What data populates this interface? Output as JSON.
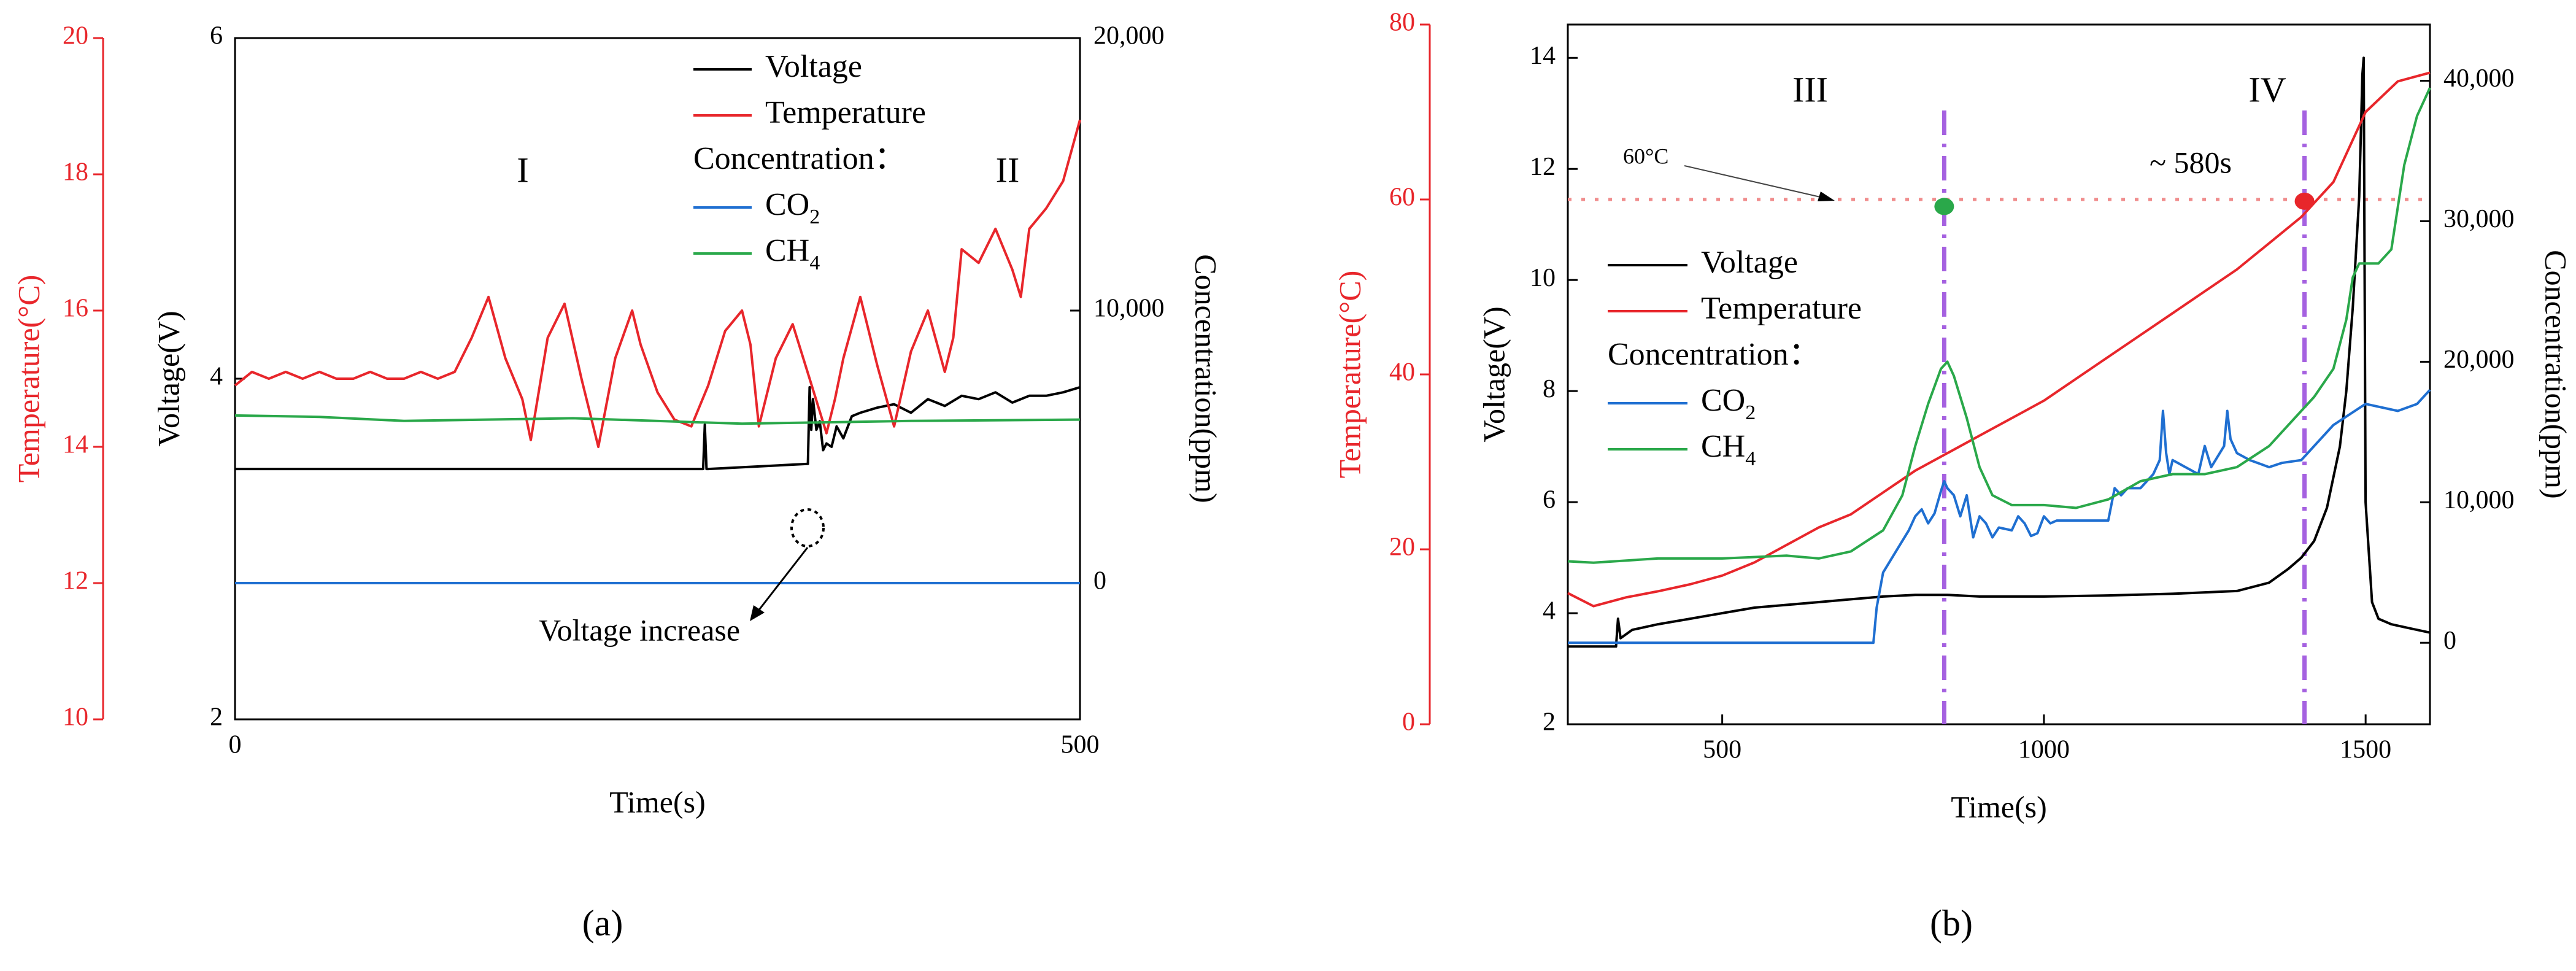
{
  "chart_data": [
    {
      "type": "line",
      "panel_label": "(a)",
      "xlabel": "Time(s)",
      "xlim": [
        0,
        500
      ],
      "x_ticks": [
        0,
        500
      ],
      "x_tick_labels": [
        "0",
        "500"
      ],
      "y_left_inner": {
        "label": "Voltage(V)",
        "lim": [
          2,
          6
        ],
        "ticks": [
          2,
          4,
          6
        ],
        "tick_labels": [
          "2",
          "4",
          "6"
        ]
      },
      "y_left_outer": {
        "label": "Temperature(°C)",
        "lim": [
          10,
          20
        ],
        "ticks": [
          10,
          12,
          14,
          16,
          18,
          20
        ],
        "tick_labels": [
          "10",
          "12",
          "14",
          "16",
          "18",
          "20"
        ],
        "color": "#e8262b"
      },
      "y_right": {
        "label": "Concentration(ppm)",
        "lim": [
          -5000,
          20000
        ],
        "ticks": [
          0,
          10000,
          20000
        ],
        "tick_labels": [
          "0",
          "10,000",
          "20,000"
        ]
      },
      "legend": [
        {
          "label": "Voltage",
          "color": "#000000"
        },
        {
          "label": "Temperature",
          "color": "#e8262b"
        },
        {
          "label": "Concentration：",
          "color": ""
        },
        {
          "label": "CO",
          "sub": "2",
          "color": "#1f6fd1"
        },
        {
          "label": "CH",
          "sub": "4",
          "color": "#2aa84a"
        }
      ],
      "annotations": {
        "region_1": "I",
        "region_2": "II",
        "voltage_note": "Voltage increase"
      },
      "series": [
        {
          "name": "Voltage",
          "axis": "voltage",
          "color": "#000000",
          "x": [
            0,
            277,
            278,
            279,
            280,
            339,
            340,
            341,
            342,
            344,
            346,
            348,
            350,
            353,
            356,
            360,
            365,
            370,
            380,
            390,
            400,
            410,
            420,
            430,
            440,
            450,
            460,
            470,
            480,
            490,
            500
          ],
          "y": [
            3.47,
            3.47,
            3.73,
            3.47,
            3.47,
            3.5,
            3.95,
            3.7,
            3.88,
            3.7,
            3.75,
            3.58,
            3.62,
            3.6,
            3.72,
            3.65,
            3.78,
            3.8,
            3.83,
            3.85,
            3.8,
            3.88,
            3.84,
            3.9,
            3.88,
            3.92,
            3.86,
            3.9,
            3.9,
            3.92,
            3.95
          ]
        },
        {
          "name": "Temperature",
          "axis": "temperature",
          "color": "#e8262b",
          "x": [
            0,
            10,
            20,
            30,
            40,
            50,
            60,
            70,
            80,
            90,
            100,
            110,
            120,
            130,
            140,
            150,
            160,
            170,
            175,
            185,
            195,
            205,
            215,
            225,
            235,
            240,
            250,
            260,
            270,
            280,
            290,
            300,
            305,
            310,
            320,
            330,
            340,
            350,
            355,
            360,
            370,
            380,
            390,
            400,
            410,
            420,
            425,
            430,
            440,
            450,
            460,
            465,
            470,
            480,
            490,
            500
          ],
          "y": [
            14.9,
            15.1,
            15.0,
            15.1,
            15.0,
            15.1,
            15.0,
            15.0,
            15.1,
            15.0,
            15.0,
            15.1,
            15.0,
            15.1,
            15.6,
            16.2,
            15.3,
            14.7,
            14.1,
            15.6,
            16.1,
            15.0,
            14.0,
            15.3,
            16.0,
            15.5,
            14.8,
            14.4,
            14.3,
            14.9,
            15.7,
            16.0,
            15.5,
            14.3,
            15.3,
            15.8,
            15.0,
            14.2,
            14.7,
            15.3,
            16.2,
            15.2,
            14.3,
            15.4,
            16.0,
            15.1,
            15.6,
            16.9,
            16.7,
            17.2,
            16.6,
            16.2,
            17.2,
            17.5,
            17.9,
            18.8
          ]
        },
        {
          "name": "CO2",
          "axis": "concentration",
          "color": "#1f6fd1",
          "x": [
            0,
            500
          ],
          "y": [
            0,
            0
          ]
        },
        {
          "name": "CH4",
          "axis": "concentration",
          "color": "#2aa84a",
          "x": [
            0,
            50,
            100,
            200,
            300,
            400,
            500
          ],
          "y": [
            6150,
            6100,
            5950,
            6050,
            5850,
            5950,
            6000
          ]
        }
      ]
    },
    {
      "type": "line",
      "panel_label": "(b)",
      "xlabel": "Time(s)",
      "xlim": [
        260,
        1600
      ],
      "x_ticks": [
        500,
        1000,
        1500
      ],
      "x_tick_labels": [
        "500",
        "1000",
        "1500"
      ],
      "y_left_inner": {
        "label": "Voltage(V)",
        "lim": [
          2,
          14.6
        ],
        "ticks": [
          2,
          4,
          6,
          8,
          10,
          12,
          14
        ],
        "tick_labels": [
          "2",
          "4",
          "6",
          "8",
          "10",
          "12",
          "14"
        ]
      },
      "y_left_outer": {
        "label": "Temperature(°C)",
        "lim": [
          0,
          80
        ],
        "ticks": [
          0,
          20,
          40,
          60,
          80
        ],
        "tick_labels": [
          "0",
          "20",
          "40",
          "60",
          "80"
        ],
        "color": "#e8262b"
      },
      "y_right": {
        "label": "Concentration(ppm)",
        "lim": [
          -5800,
          44000
        ],
        "ticks": [
          0,
          10000,
          20000,
          30000,
          40000
        ],
        "tick_labels": [
          "0",
          "10,000",
          "20,000",
          "30,000",
          "40,000"
        ]
      },
      "legend": [
        {
          "label": "Voltage",
          "color": "#000000"
        },
        {
          "label": "Temperature",
          "color": "#e8262b"
        },
        {
          "label": "Concentration：",
          "color": ""
        },
        {
          "label": "CO",
          "sub": "2",
          "color": "#1f6fd1"
        },
        {
          "label": "CH",
          "sub": "4",
          "color": "#2aa84a"
        }
      ],
      "annotations": {
        "region_3": "III",
        "region_4": "IV",
        "temp_threshold": "60°C",
        "interval": "~ 580s",
        "threshold_temp_value": 60,
        "vline_1_x": 845,
        "vline_2_x": 1405
      },
      "markers": [
        {
          "x": 845,
          "temp": 59.2,
          "color": "#2aa84a"
        },
        {
          "x": 1405,
          "temp": 59.8,
          "color": "#e8262b"
        }
      ],
      "series": [
        {
          "name": "Voltage",
          "axis": "voltage",
          "color": "#000000",
          "x": [
            260,
            335,
            338,
            342,
            360,
            400,
            450,
            500,
            550,
            600,
            650,
            700,
            750,
            800,
            850,
            900,
            1000,
            1100,
            1200,
            1300,
            1350,
            1380,
            1400,
            1420,
            1440,
            1460,
            1470,
            1480,
            1490,
            1495,
            1497,
            1500,
            1510,
            1520,
            1540,
            1560,
            1580,
            1600
          ],
          "y": [
            3.4,
            3.4,
            3.9,
            3.55,
            3.7,
            3.8,
            3.9,
            4.0,
            4.1,
            4.15,
            4.2,
            4.25,
            4.3,
            4.33,
            4.33,
            4.3,
            4.3,
            4.32,
            4.35,
            4.4,
            4.55,
            4.8,
            5.0,
            5.3,
            5.9,
            7.0,
            8.0,
            9.5,
            11.5,
            13.7,
            14.0,
            6.0,
            4.2,
            3.9,
            3.8,
            3.75,
            3.7,
            3.65
          ]
        },
        {
          "name": "Temperature",
          "axis": "temperature",
          "color": "#e8262b",
          "x": [
            260,
            300,
            350,
            400,
            450,
            500,
            550,
            600,
            650,
            700,
            750,
            800,
            850,
            900,
            950,
            1000,
            1050,
            1100,
            1150,
            1200,
            1250,
            1300,
            1350,
            1400,
            1450,
            1500,
            1550,
            1600
          ],
          "y": [
            15.0,
            13.5,
            14.5,
            15.2,
            16.0,
            17.0,
            18.5,
            20.5,
            22.5,
            24.0,
            26.5,
            29.0,
            31.0,
            33.0,
            35.0,
            37.0,
            39.5,
            42.0,
            44.5,
            47.0,
            49.5,
            52.0,
            55.0,
            58.0,
            62.0,
            70.0,
            73.5,
            74.5
          ]
        },
        {
          "name": "CO2",
          "axis": "concentration",
          "color": "#1f6fd1",
          "x": [
            260,
            735,
            740,
            750,
            770,
            790,
            800,
            810,
            820,
            830,
            840,
            845,
            850,
            860,
            870,
            880,
            890,
            900,
            910,
            920,
            930,
            950,
            960,
            970,
            980,
            990,
            1000,
            1010,
            1020,
            1050,
            1100,
            1110,
            1120,
            1130,
            1150,
            1170,
            1180,
            1185,
            1190,
            1195,
            1200,
            1220,
            1240,
            1250,
            1260,
            1280,
            1285,
            1290,
            1300,
            1320,
            1350,
            1370,
            1400,
            1450,
            1500,
            1550,
            1580,
            1600
          ],
          "y": [
            0,
            0,
            2500,
            5000,
            6500,
            8000,
            9000,
            9500,
            8500,
            9200,
            10800,
            11500,
            11000,
            10500,
            9000,
            10500,
            7500,
            9000,
            8500,
            7500,
            8200,
            8000,
            9000,
            8500,
            7600,
            7800,
            9000,
            8500,
            8700,
            8700,
            8700,
            11000,
            10500,
            11000,
            11000,
            12000,
            13000,
            16500,
            13500,
            12000,
            13000,
            12500,
            12000,
            14000,
            12500,
            14000,
            16500,
            14500,
            13500,
            13000,
            12500,
            12800,
            13000,
            15500,
            17000,
            16500,
            17000,
            18000
          ]
        },
        {
          "name": "CH4",
          "axis": "concentration",
          "color": "#2aa84a",
          "x": [
            260,
            300,
            400,
            500,
            600,
            650,
            700,
            750,
            780,
            800,
            820,
            840,
            850,
            860,
            880,
            900,
            920,
            950,
            1000,
            1050,
            1100,
            1150,
            1200,
            1250,
            1300,
            1350,
            1380,
            1400,
            1420,
            1450,
            1470,
            1480,
            1490,
            1500,
            1520,
            1540,
            1560,
            1580,
            1600
          ],
          "y": [
            5800,
            5700,
            6000,
            6000,
            6200,
            6000,
            6500,
            8000,
            10500,
            14000,
            17000,
            19500,
            20000,
            19000,
            16000,
            12500,
            10500,
            9800,
            9800,
            9600,
            10200,
            11500,
            12000,
            12000,
            12500,
            14000,
            15500,
            16500,
            17500,
            19500,
            23000,
            26000,
            27000,
            27000,
            27000,
            28000,
            34000,
            37500,
            39500
          ]
        }
      ]
    }
  ]
}
